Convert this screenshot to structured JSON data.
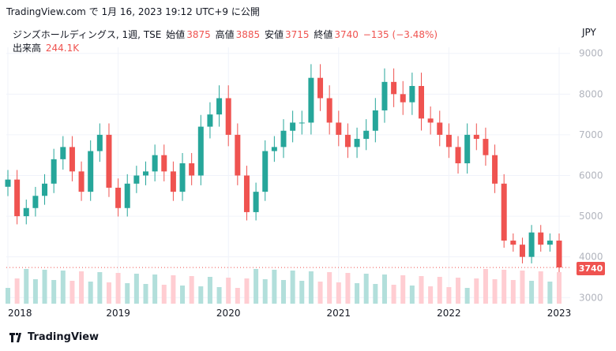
{
  "header": {
    "source_line": "TradingView.com で 1月 16, 2023 19:12 UTC+9 に公開"
  },
  "legend": {
    "symbol": "ジンズホールディングス, 1週, TSE",
    "open_label": "始値",
    "open_value": "3875",
    "high_label": "高値",
    "high_value": "3885",
    "low_label": "安値",
    "low_value": "3715",
    "close_label": "終値",
    "close_value": "3740",
    "change": "−135 (−3.48%)",
    "volume_label": "出来高",
    "volume_value": "244.1K"
  },
  "currency": "JPY",
  "last_price_badge": "3740",
  "footer": {
    "brand": "TradingView"
  },
  "colors": {
    "up": "#26a69a",
    "down": "#ef5350",
    "grid": "#f0f3fa",
    "vol_up": "#b2dfdb",
    "vol_down": "#ffcdd2"
  },
  "chart_data": {
    "type": "candlestick",
    "title": "ジンズホールディングス, 1週, TSE",
    "ylabel": "JPY",
    "y_ticks": [
      3000,
      4000,
      5000,
      6000,
      7000,
      8000,
      9000
    ],
    "y_tick_labels": [
      "3000",
      "4000",
      "5000",
      "6000",
      "7000",
      "8000",
      "9000"
    ],
    "ylim": [
      2850,
      9150
    ],
    "x_ticks": [
      "2018",
      "2019",
      "2020",
      "2021",
      "2022",
      "2023"
    ],
    "grid": true,
    "last_close": 3740,
    "series": [
      {
        "name": "終値",
        "x": [
          "2018-01",
          "2018-02",
          "2018-03",
          "2018-04",
          "2018-05",
          "2018-06",
          "2018-07",
          "2018-08",
          "2018-09",
          "2018-10",
          "2018-11",
          "2018-12",
          "2019-01",
          "2019-02",
          "2019-03",
          "2019-04",
          "2019-05",
          "2019-06",
          "2019-07",
          "2019-08",
          "2019-09",
          "2019-10",
          "2019-11",
          "2019-12",
          "2020-01",
          "2020-02",
          "2020-03",
          "2020-04",
          "2020-05",
          "2020-06",
          "2020-07",
          "2020-08",
          "2020-09",
          "2020-10",
          "2020-11",
          "2020-12",
          "2021-01",
          "2021-02",
          "2021-03",
          "2021-04",
          "2021-05",
          "2021-06",
          "2021-07",
          "2021-08",
          "2021-09",
          "2021-10",
          "2021-11",
          "2021-12",
          "2022-01",
          "2022-02",
          "2022-03",
          "2022-04",
          "2022-05",
          "2022-06",
          "2022-07",
          "2022-08",
          "2022-09",
          "2022-10",
          "2022-11",
          "2022-12",
          "2023-01"
        ],
        "values": [
          5900,
          5000,
          5200,
          5500,
          5800,
          6400,
          6700,
          6100,
          5600,
          6600,
          7000,
          5700,
          5200,
          5800,
          6000,
          6100,
          6500,
          6100,
          5600,
          6300,
          6000,
          7200,
          7500,
          7900,
          7000,
          6000,
          5100,
          5600,
          6600,
          6700,
          7100,
          7300,
          7300,
          8400,
          7900,
          7300,
          7000,
          6700,
          6900,
          7100,
          7600,
          8300,
          8000,
          7800,
          8200,
          7400,
          7300,
          7000,
          6700,
          6300,
          7000,
          6900,
          6500,
          5800,
          4400,
          4300,
          4000,
          4600,
          4300,
          4400,
          3740
        ]
      }
    ]
  }
}
